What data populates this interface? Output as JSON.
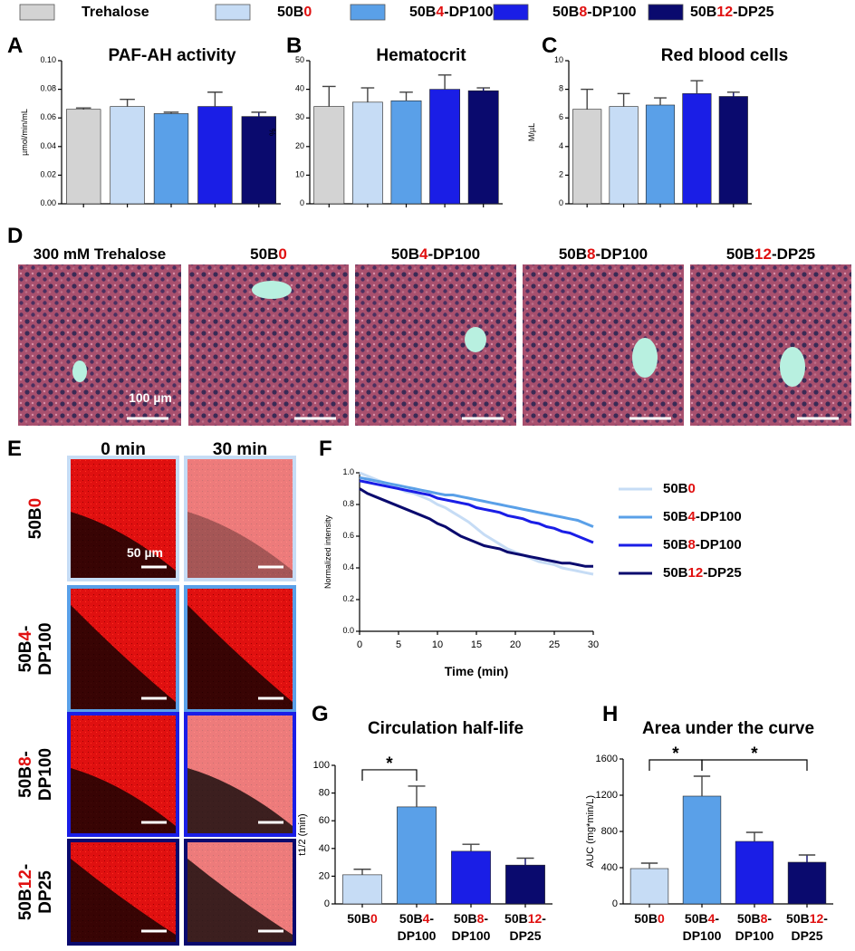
{
  "legend": {
    "series": [
      {
        "name": "Trehalose",
        "color": "#d3d3d3"
      },
      {
        "name": "50B0",
        "color": "#c6dcf5"
      },
      {
        "name": "50B4-DP100",
        "color": "#5aa0e8"
      },
      {
        "name": "50B8-DP100",
        "color": "#1a1ee6"
      },
      {
        "name": "50B12-DP25",
        "color": "#0a0a6e"
      }
    ]
  },
  "chart_data": [
    {
      "type": "bar",
      "panel": "A",
      "title": "PAF-AH activity",
      "y_label": "µmol/min/mL",
      "categories": [
        null,
        null,
        null,
        null,
        null
      ],
      "values": [
        0.066,
        0.068,
        0.063,
        0.068,
        0.061
      ],
      "errors": [
        0.001,
        0.005,
        0.001,
        0.01,
        0.003
      ],
      "colors": [
        "#d3d3d3",
        "#c6dcf5",
        "#5aa0e8",
        "#1a1ee6",
        "#0a0a6e"
      ],
      "ylim": [
        0,
        0.1
      ],
      "yticks": [
        {
          "value": 0,
          "label": "0.00"
        },
        {
          "value": 0.02,
          "label": "0.02"
        },
        {
          "value": 0.04,
          "label": "0.04"
        },
        {
          "value": 0.06,
          "label": "0.06"
        },
        {
          "value": 0.08,
          "label": "0.08"
        },
        {
          "value": 0.1,
          "label": "0.10"
        }
      ]
    },
    {
      "type": "bar",
      "panel": "B",
      "title": "Hematocrit",
      "y_label": "%",
      "categories": [
        null,
        null,
        null,
        null,
        null
      ],
      "values": [
        34,
        35.5,
        36,
        40,
        39.5
      ],
      "errors": [
        7,
        5,
        3,
        5,
        1
      ],
      "colors": [
        "#d3d3d3",
        "#c6dcf5",
        "#5aa0e8",
        "#1a1ee6",
        "#0a0a6e"
      ],
      "ylim": [
        0,
        50
      ],
      "yticks": [
        0,
        10,
        20,
        30,
        40,
        50
      ]
    },
    {
      "type": "bar",
      "panel": "C",
      "title": "Red blood cells",
      "y_label": "M/µL",
      "categories": [
        null,
        null,
        null,
        null,
        null
      ],
      "values": [
        6.6,
        6.8,
        6.9,
        7.7,
        7.5
      ],
      "errors": [
        1.4,
        0.9,
        0.5,
        0.9,
        0.3
      ],
      "colors": [
        "#d3d3d3",
        "#c6dcf5",
        "#5aa0e8",
        "#1a1ee6",
        "#0a0a6e"
      ],
      "ylim": [
        0,
        10
      ],
      "yticks": [
        0,
        2,
        4,
        6,
        8,
        10
      ]
    },
    {
      "type": "line",
      "panel": "F",
      "y_label": "Normalized intensity",
      "x_label": "Time (min)",
      "x": [
        0,
        1,
        2,
        3,
        4,
        5,
        6,
        7,
        8,
        9,
        10,
        11,
        12,
        13,
        14,
        15,
        16,
        17,
        18,
        19,
        20,
        21,
        22,
        23,
        24,
        25,
        26,
        27,
        28,
        29,
        30
      ],
      "series": [
        {
          "name": "50B0",
          "color": "#c6dcf5",
          "values": [
            1.0,
            0.98,
            0.96,
            0.94,
            0.92,
            0.9,
            0.88,
            0.87,
            0.85,
            0.83,
            0.8,
            0.78,
            0.75,
            0.72,
            0.69,
            0.65,
            0.61,
            0.58,
            0.55,
            0.52,
            0.5,
            0.48,
            0.46,
            0.44,
            0.43,
            0.42,
            0.4,
            0.39,
            0.38,
            0.37,
            0.36
          ]
        },
        {
          "name": "50B4-DP100",
          "color": "#5aa0e8",
          "values": [
            0.97,
            0.96,
            0.95,
            0.94,
            0.93,
            0.92,
            0.91,
            0.9,
            0.89,
            0.88,
            0.87,
            0.86,
            0.86,
            0.85,
            0.84,
            0.83,
            0.82,
            0.81,
            0.8,
            0.79,
            0.78,
            0.77,
            0.76,
            0.75,
            0.74,
            0.73,
            0.72,
            0.71,
            0.7,
            0.68,
            0.66
          ]
        },
        {
          "name": "50B8-DP100",
          "color": "#1a1ee6",
          "values": [
            0.95,
            0.94,
            0.93,
            0.92,
            0.91,
            0.9,
            0.89,
            0.88,
            0.87,
            0.86,
            0.84,
            0.83,
            0.82,
            0.81,
            0.8,
            0.78,
            0.77,
            0.76,
            0.75,
            0.73,
            0.72,
            0.71,
            0.69,
            0.68,
            0.66,
            0.65,
            0.63,
            0.62,
            0.6,
            0.58,
            0.56
          ]
        },
        {
          "name": "50B12-DP25",
          "color": "#0a0a6e",
          "values": [
            0.9,
            0.87,
            0.85,
            0.83,
            0.81,
            0.79,
            0.77,
            0.75,
            0.73,
            0.71,
            0.68,
            0.66,
            0.63,
            0.6,
            0.58,
            0.56,
            0.54,
            0.53,
            0.52,
            0.5,
            0.49,
            0.48,
            0.47,
            0.46,
            0.45,
            0.44,
            0.43,
            0.43,
            0.42,
            0.41,
            0.41
          ]
        }
      ],
      "xlim": [
        0,
        30
      ],
      "xticks": [
        0,
        5,
        10,
        15,
        20,
        25,
        30
      ],
      "ylim": [
        0,
        1
      ],
      "yticks": [
        {
          "value": 0,
          "label": "0.0"
        },
        {
          "value": 0.2,
          "label": "0.2"
        },
        {
          "value": 0.4,
          "label": "0.4"
        },
        {
          "value": 0.6,
          "label": "0.6"
        },
        {
          "value": 0.8,
          "label": "0.8"
        },
        {
          "value": 1,
          "label": "1.0"
        }
      ]
    },
    {
      "type": "bar",
      "panel": "G",
      "title": "Circulation half-life",
      "y_label": "t1/2 (min)",
      "categories": [
        "50B0",
        "50B4-DP100",
        "50B8-DP100",
        "50B12-DP25"
      ],
      "values": [
        21,
        70,
        38,
        28
      ],
      "errors": [
        4,
        15,
        5,
        5
      ],
      "colors": [
        "#c6dcf5",
        "#5aa0e8",
        "#1a1ee6",
        "#0a0a6e"
      ],
      "ylim": [
        0,
        100
      ],
      "yticks": [
        0,
        20,
        40,
        60,
        80,
        100
      ],
      "brackets": [
        {
          "between": [
            0,
            1
          ],
          "label": "*"
        }
      ]
    },
    {
      "type": "bar",
      "panel": "H",
      "title": "Area under the curve",
      "y_label": "AUC (mg*min/L)",
      "categories": [
        "50B0",
        "50B4-DP100",
        "50B8-DP100",
        "50B12-DP25"
      ],
      "values": [
        390,
        1190,
        690,
        460
      ],
      "errors": [
        60,
        220,
        100,
        80
      ],
      "colors": [
        "#c6dcf5",
        "#5aa0e8",
        "#1a1ee6",
        "#0a0a6e"
      ],
      "ylim": [
        0,
        1600
      ],
      "yticks": [
        0,
        400,
        800,
        1200,
        1600
      ],
      "brackets": [
        {
          "between": [
            0,
            1
          ],
          "label": "*"
        },
        {
          "between": [
            1,
            3
          ],
          "label": "*"
        }
      ]
    }
  ],
  "histology": {
    "panel": "D",
    "titles": [
      "300 mM Trehalose",
      "50B0",
      "50B4-DP100",
      "50B8-DP100",
      "50B12-DP25"
    ],
    "scale_label": "100 µm"
  },
  "imaging": {
    "panel": "E",
    "columns": [
      "0 min",
      "30 min"
    ],
    "rows": [
      "50B0",
      "50B4-DP100",
      "50B8-DP100",
      "50B12-DP25"
    ],
    "row_colors": [
      "#c6dcf5",
      "#5aa0e8",
      "#1a1ee6",
      "#0a0a6e"
    ],
    "scale_label": "50 µm"
  }
}
